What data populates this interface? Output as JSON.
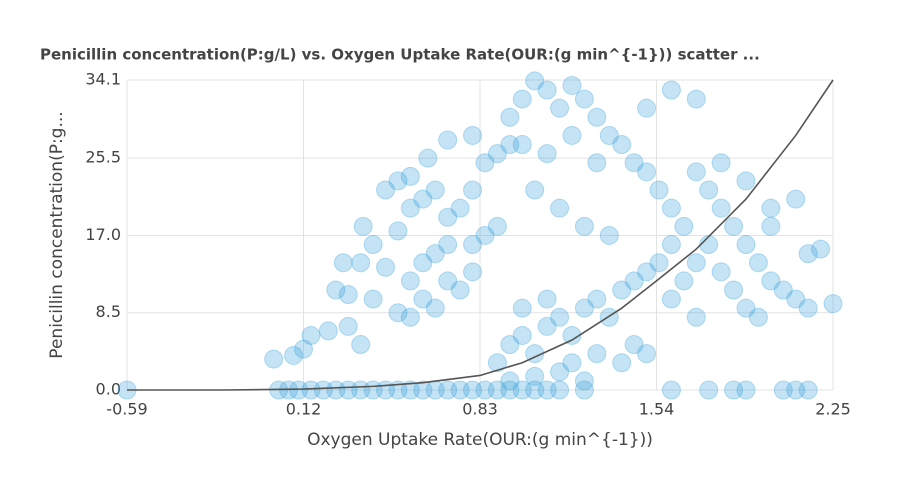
{
  "chart_data": {
    "type": "scatter",
    "title": "Penicillin concentration(P:g/L) vs. Oxygen Uptake Rate(OUR:(g min^{-1})) scatter ...",
    "xlabel": "Oxygen Uptake Rate(OUR:(g min^{-1}))",
    "ylabel": "Penicillin concentration(P:g...",
    "xlim": [
      -0.59,
      2.25
    ],
    "xticks": [
      -0.59,
      0.12,
      0.83,
      1.54,
      2.25
    ],
    "ylim": [
      0,
      34.1
    ],
    "yticks": [
      {
        "value": 0,
        "label": "0.0"
      },
      8.5,
      {
        "value": 17,
        "label": "17.0"
      },
      25.5,
      34.1
    ],
    "grid": true,
    "points": {
      "color": "#3ba3dc",
      "x": [
        -0.59,
        0.02,
        0.06,
        0.1,
        0.15,
        0.2,
        0.25,
        0.3,
        0.35,
        0.4,
        0.45,
        0.5,
        0.55,
        0.6,
        0.65,
        0.7,
        0.75,
        0.8,
        0.85,
        0.9,
        0.95,
        1.0,
        1.05,
        1.1,
        1.15,
        1.25,
        1.6,
        1.75,
        1.85,
        1.9,
        2.05,
        2.1,
        2.15,
        0.0,
        0.08,
        0.12,
        0.15,
        0.22,
        0.3,
        0.35,
        0.4,
        0.45,
        0.3,
        0.25,
        0.5,
        0.55,
        0.6,
        0.65,
        0.7,
        0.75,
        0.8,
        0.55,
        0.6,
        0.65,
        0.7,
        0.8,
        0.85,
        0.9,
        0.5,
        0.55,
        0.6,
        0.65,
        0.7,
        0.75,
        0.8,
        0.85,
        0.9,
        0.95,
        0.45,
        0.5,
        0.55,
        0.62,
        0.7,
        0.8,
        0.36,
        0.4,
        0.28,
        0.35,
        0.9,
        0.95,
        1.0,
        1.05,
        1.1,
        1.15,
        1.2,
        1.25,
        1.3,
        1.35,
        1.4,
        1.45,
        1.5,
        1.55,
        1.6,
        1.0,
        1.1,
        1.2,
        1.3,
        1.4,
        1.45,
        1.5,
        1.05,
        1.15,
        1.25,
        0.95,
        0.95,
        1.0,
        1.05,
        1.1,
        1.15,
        1.2,
        1.25,
        1.3,
        1.35,
        1.4,
        1.45,
        1.0,
        1.1,
        1.2,
        1.3,
        1.05,
        1.15,
        1.25,
        1.35,
        1.5,
        1.6,
        1.7,
        1.5,
        1.55,
        1.6,
        1.65,
        1.7,
        1.75,
        1.8,
        1.85,
        1.9,
        1.95,
        2.0,
        2.05,
        2.1,
        2.15,
        2.25,
        1.65,
        1.7,
        1.75,
        1.8,
        1.85,
        1.9,
        1.95,
        2.0,
        2.1,
        2.15,
        2.2,
        1.6,
        1.7,
        1.8,
        1.9,
        2.0
      ],
      "y": [
        0,
        0,
        0,
        0,
        0,
        0,
        0,
        0,
        0,
        0,
        0,
        0,
        0,
        0,
        0,
        0,
        0,
        0,
        0,
        0,
        0,
        0,
        0,
        0,
        0,
        0,
        0,
        0,
        0,
        0,
        0,
        0,
        0,
        3.4,
        3.8,
        4.5,
        6,
        6.5,
        7,
        5,
        10,
        13.5,
        10.5,
        11,
        8.5,
        8,
        10,
        9,
        12,
        11,
        13,
        12,
        14,
        15,
        16,
        16,
        17,
        18,
        17.5,
        20,
        21,
        22,
        19,
        20,
        22,
        25,
        26,
        27,
        22,
        23,
        23.5,
        25.5,
        27.5,
        28,
        18,
        16,
        14,
        14,
        3,
        5,
        6,
        4,
        7,
        8,
        6,
        9,
        10,
        8,
        11,
        12,
        13,
        14,
        16,
        9,
        10,
        3,
        4,
        3,
        5,
        4,
        1.5,
        2,
        1,
        1,
        30,
        32,
        34,
        33,
        31,
        33.5,
        32,
        30,
        28,
        27,
        25,
        27,
        26,
        28,
        25,
        22,
        20,
        18,
        17,
        31,
        33,
        32,
        24,
        22,
        20,
        18,
        24,
        22,
        20,
        18,
        16,
        14,
        12,
        11,
        10,
        9,
        9.5,
        12,
        14,
        16,
        13,
        11,
        9,
        8,
        20,
        21,
        15,
        15.5,
        10,
        8,
        25,
        23,
        18
      ]
    },
    "fit_line": {
      "color": "#555555",
      "x": [
        -0.59,
        -0.2,
        0.12,
        0.4,
        0.6,
        0.83,
        1.0,
        1.2,
        1.4,
        1.54,
        1.7,
        1.9,
        2.1,
        2.25
      ],
      "y": [
        0,
        0,
        0.1,
        0.4,
        0.8,
        1.6,
        3.0,
        5.5,
        9.0,
        12,
        15.5,
        21,
        28,
        34.1
      ]
    }
  }
}
